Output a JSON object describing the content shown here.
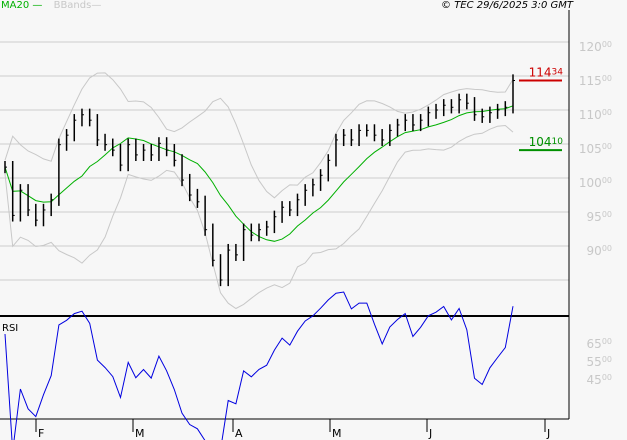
{
  "header": {
    "copyright": "© TEC 29/6/2025 3:0 GMT",
    "legend_ma": "MA20",
    "legend_bb": "BBands"
  },
  "colors": {
    "ma": "#00b000",
    "bbands": "#c8c8c8",
    "bars": "#000000",
    "rsi": "#0000e0",
    "last": "#cc0000",
    "level": "#009000",
    "grid": "#cccccc"
  },
  "chart_data": [
    {
      "type": "ohlc-bar",
      "title": "",
      "y_ticks": [
        "120.00",
        "115.00",
        "110.00",
        "105.00",
        "100.00",
        "95.00",
        "90.00"
      ],
      "ylim": [
        83,
        123
      ],
      "x_ticks": [
        "F",
        "M",
        "A",
        "M",
        "J",
        "J"
      ],
      "grid": true,
      "closes": [
        101.6,
        94.5,
        98.2,
        95.3,
        93.8,
        95.3,
        96.8,
        104.9,
        106.3,
        108.5,
        109.3,
        108.5,
        105.6,
        104.9,
        104.1,
        101.9,
        104.9,
        103.4,
        104.1,
        103.4,
        105.1,
        104.1,
        102.6,
        99.7,
        97.5,
        96.5,
        92.4,
        87.9,
        85.0,
        89.4,
        88.7,
        92.4,
        91.6,
        92.4,
        92.8,
        94.3,
        95.7,
        95.3,
        96.8,
        98.2,
        99.0,
        100.4,
        102.6,
        105.6,
        106.3,
        105.6,
        107.0,
        107.0,
        106.3,
        105.6,
        107.0,
        107.8,
        108.5,
        107.8,
        108.5,
        109.6,
        110.0,
        110.7,
        110.4,
        111.5,
        111.0,
        109.3,
        109.0,
        109.6,
        110.0,
        110.4,
        114.34
      ],
      "overlays": [
        "MA20",
        "BBands"
      ],
      "annotations": [
        {
          "label_int": "114",
          "label_dec": "34",
          "value": 114.34,
          "kind": "last"
        },
        {
          "label_int": "104",
          "label_dec": "10",
          "value": 104.1,
          "kind": "level"
        }
      ]
    },
    {
      "type": "line",
      "title": "RSI",
      "y_ticks": [
        "65.00",
        "55.00",
        "45.00"
      ],
      "ylim": [
        5,
        100
      ]
    }
  ]
}
